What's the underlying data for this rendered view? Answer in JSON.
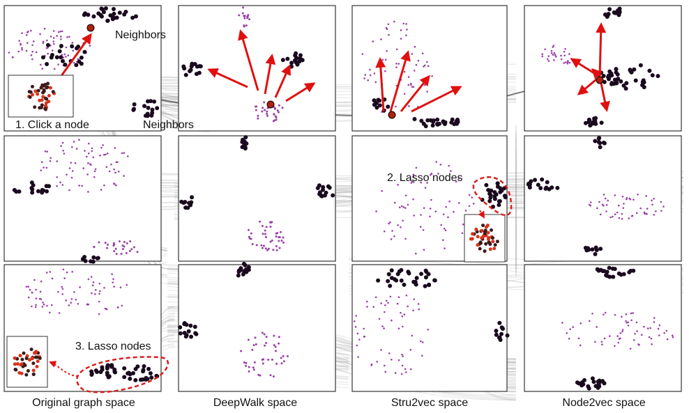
{
  "column_labels": [
    "Original graph space",
    "DeepWalk space",
    "Stru2vec space",
    "Node2vec space"
  ],
  "annotations": {
    "click_node": "1. Click a node",
    "neighbors_top": "Neighbors",
    "neighbors_bottom": "Neighbors",
    "lasso_stru2vec": "2. Lasso nodes",
    "lasso_original": "3. Lasso nodes"
  },
  "colors": {
    "point": "#9b3fa8",
    "highlight": "#1a0a1e",
    "arrow": "#e01010",
    "selected_node": "#b0200e",
    "link": "#8c8c8c",
    "lasso": "#d81e1e",
    "frame": "#333333"
  }
}
